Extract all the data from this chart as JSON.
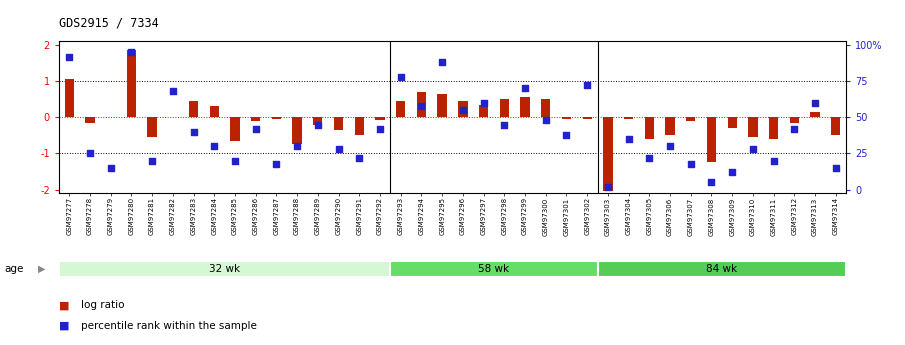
{
  "title": "GDS2915 / 7334",
  "samples": [
    "GSM97277",
    "GSM97278",
    "GSM97279",
    "GSM97280",
    "GSM97281",
    "GSM97282",
    "GSM97283",
    "GSM97284",
    "GSM97285",
    "GSM97286",
    "GSM97287",
    "GSM97288",
    "GSM97289",
    "GSM97290",
    "GSM97291",
    "GSM97292",
    "GSM97293",
    "GSM97294",
    "GSM97295",
    "GSM97296",
    "GSM97297",
    "GSM97298",
    "GSM97299",
    "GSM97300",
    "GSM97301",
    "GSM97302",
    "GSM97303",
    "GSM97304",
    "GSM97305",
    "GSM97306",
    "GSM97307",
    "GSM97308",
    "GSM97309",
    "GSM97310",
    "GSM97311",
    "GSM97312",
    "GSM97313",
    "GSM97314"
  ],
  "log_ratio": [
    1.05,
    -0.15,
    0.0,
    1.85,
    -0.55,
    0.0,
    0.45,
    0.3,
    -0.65,
    -0.1,
    -0.05,
    -0.75,
    -0.2,
    -0.35,
    -0.5,
    -0.08,
    0.45,
    0.7,
    0.65,
    0.45,
    0.35,
    0.5,
    0.55,
    0.5,
    -0.05,
    -0.05,
    -2.05,
    -0.05,
    -0.6,
    -0.5,
    -0.1,
    -1.25,
    -0.3,
    -0.55,
    -0.6,
    -0.15,
    0.15,
    -0.5
  ],
  "percentile": [
    92,
    25,
    15,
    95,
    20,
    68,
    40,
    30,
    20,
    42,
    18,
    30,
    45,
    28,
    22,
    42,
    78,
    58,
    88,
    55,
    60,
    45,
    70,
    48,
    38,
    72,
    2,
    35,
    22,
    30,
    18,
    5,
    12,
    28,
    20,
    42,
    60,
    15
  ],
  "groups": [
    {
      "label": "32 wk",
      "start": 0,
      "end": 15,
      "color": "#d4f7d4"
    },
    {
      "label": "58 wk",
      "start": 16,
      "end": 25,
      "color": "#66dd66"
    },
    {
      "label": "84 wk",
      "start": 26,
      "end": 37,
      "color": "#55cc55"
    }
  ],
  "group_boundaries": [
    15.5,
    25.5
  ],
  "ylim": [
    -2.1,
    2.1
  ],
  "yticks_left": [
    -2,
    -1,
    0,
    1,
    2
  ],
  "yticks_right": [
    0,
    25,
    50,
    75,
    100
  ],
  "hlines_dotted": [
    -1.0,
    1.0
  ],
  "hline_red": 0.0,
  "bar_color": "#bb2200",
  "dot_color": "#2222cc",
  "background_color": "#ffffff",
  "legend_log_ratio": "log ratio",
  "legend_percentile": "percentile rank within the sample",
  "age_label": "age"
}
